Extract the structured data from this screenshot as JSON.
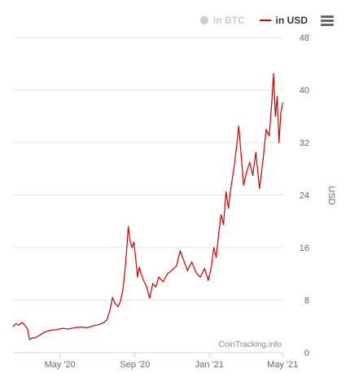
{
  "legend": {
    "btc_label": "in BTC",
    "usd_label": "in USD",
    "btc_color": "#cccccc",
    "usd_color": "#cc0000"
  },
  "menu": {
    "icon": "hamburger-menu-icon"
  },
  "credit": "CoinTracking.info",
  "chart_data": {
    "type": "line",
    "title": "",
    "xlabel": "",
    "ylabel": "USD",
    "y_axis_side": "right",
    "ylim": [
      0,
      48
    ],
    "y_ticks": [
      0,
      8,
      16,
      24,
      32,
      40,
      48
    ],
    "xlim": [
      "2020-02-14",
      "2021-05-02"
    ],
    "x_ticks": [
      {
        "date": "2020-05-01",
        "label": "May '20"
      },
      {
        "date": "2020-09-01",
        "label": "Sep '20"
      },
      {
        "date": "2021-01-01",
        "label": "Jan '21"
      },
      {
        "date": "2021-05-01",
        "label": "May '21"
      }
    ],
    "grid": true,
    "legend_position": "top-right",
    "series": [
      {
        "name": "in USD",
        "color": "#cc0000",
        "points": [
          [
            "2020-02-14",
            4.0
          ],
          [
            "2020-02-19",
            4.4
          ],
          [
            "2020-02-24",
            4.2
          ],
          [
            "2020-02-29",
            4.6
          ],
          [
            "2020-03-05",
            4.1
          ],
          [
            "2020-03-09",
            3.5
          ],
          [
            "2020-03-12",
            2.0
          ],
          [
            "2020-03-16",
            2.2
          ],
          [
            "2020-03-22",
            2.3
          ],
          [
            "2020-03-28",
            2.6
          ],
          [
            "2020-04-05",
            3.1
          ],
          [
            "2020-04-15",
            3.4
          ],
          [
            "2020-04-25",
            3.5
          ],
          [
            "2020-05-05",
            3.7
          ],
          [
            "2020-05-15",
            3.6
          ],
          [
            "2020-05-25",
            3.8
          ],
          [
            "2020-06-05",
            3.9
          ],
          [
            "2020-06-15",
            3.8
          ],
          [
            "2020-06-25",
            4.1
          ],
          [
            "2020-07-05",
            4.3
          ],
          [
            "2020-07-12",
            4.6
          ],
          [
            "2020-07-17",
            5.0
          ],
          [
            "2020-07-22",
            6.5
          ],
          [
            "2020-07-26",
            8.4
          ],
          [
            "2020-07-30",
            7.5
          ],
          [
            "2020-08-04",
            7.0
          ],
          [
            "2020-08-08",
            7.8
          ],
          [
            "2020-08-12",
            9.5
          ],
          [
            "2020-08-15",
            12.0
          ],
          [
            "2020-08-17",
            14.0
          ],
          [
            "2020-08-19",
            16.5
          ],
          [
            "2020-08-21",
            19.2
          ],
          [
            "2020-08-24",
            17.0
          ],
          [
            "2020-08-27",
            16.0
          ],
          [
            "2020-08-30",
            16.8
          ],
          [
            "2020-09-02",
            14.5
          ],
          [
            "2020-09-05",
            11.5
          ],
          [
            "2020-09-08",
            13.0
          ],
          [
            "2020-09-11",
            12.0
          ],
          [
            "2020-09-15",
            11.0
          ],
          [
            "2020-09-20",
            10.0
          ],
          [
            "2020-09-25",
            8.3
          ],
          [
            "2020-09-30",
            10.5
          ],
          [
            "2020-10-05",
            10.0
          ],
          [
            "2020-10-10",
            11.5
          ],
          [
            "2020-10-17",
            10.8
          ],
          [
            "2020-10-24",
            12.0
          ],
          [
            "2020-10-31",
            12.5
          ],
          [
            "2020-11-08",
            13.2
          ],
          [
            "2020-11-14",
            15.5
          ],
          [
            "2020-11-20",
            14.0
          ],
          [
            "2020-11-26",
            12.5
          ],
          [
            "2020-12-03",
            13.8
          ],
          [
            "2020-12-10",
            12.2
          ],
          [
            "2020-12-17",
            11.5
          ],
          [
            "2020-12-24",
            12.8
          ],
          [
            "2020-12-30",
            11.0
          ],
          [
            "2021-01-04",
            13.0
          ],
          [
            "2021-01-08",
            16.0
          ],
          [
            "2021-01-12",
            14.5
          ],
          [
            "2021-01-16",
            18.0
          ],
          [
            "2021-01-20",
            21.0
          ],
          [
            "2021-01-24",
            19.5
          ],
          [
            "2021-01-28",
            24.5
          ],
          [
            "2021-02-01",
            22.0
          ],
          [
            "2021-02-05",
            25.0
          ],
          [
            "2021-02-10",
            28.0
          ],
          [
            "2021-02-14",
            31.0
          ],
          [
            "2021-02-18",
            34.5
          ],
          [
            "2021-02-22",
            30.0
          ],
          [
            "2021-02-26",
            25.5
          ],
          [
            "2021-03-03",
            27.5
          ],
          [
            "2021-03-08",
            29.0
          ],
          [
            "2021-03-13",
            27.0
          ],
          [
            "2021-03-18",
            30.5
          ],
          [
            "2021-03-24",
            25.0
          ],
          [
            "2021-03-30",
            29.5
          ],
          [
            "2021-04-04",
            34.0
          ],
          [
            "2021-04-09",
            33.0
          ],
          [
            "2021-04-13",
            38.0
          ],
          [
            "2021-04-16",
            42.5
          ],
          [
            "2021-04-19",
            36.0
          ],
          [
            "2021-04-22",
            39.0
          ],
          [
            "2021-04-25",
            32.0
          ],
          [
            "2021-04-28",
            36.5
          ],
          [
            "2021-05-01",
            38.0
          ]
        ]
      }
    ]
  }
}
